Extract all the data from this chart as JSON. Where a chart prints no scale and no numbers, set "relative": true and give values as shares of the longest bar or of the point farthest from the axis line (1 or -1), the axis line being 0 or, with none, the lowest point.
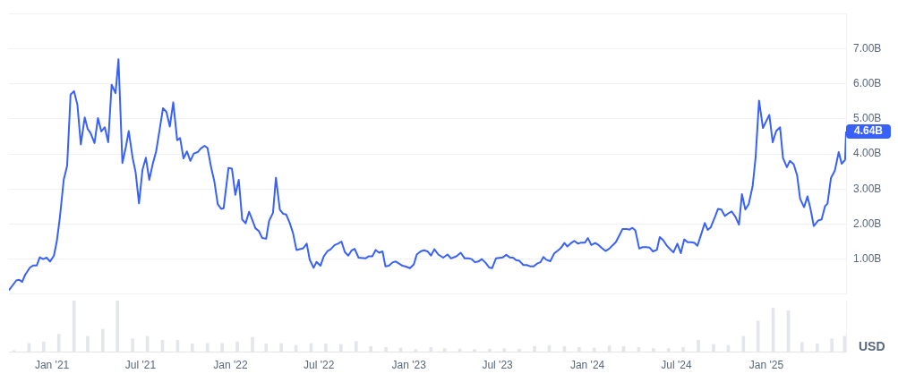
{
  "chart_data": [
    {
      "type": "line",
      "ylabel": "USD",
      "xlim": [
        "2020-10-05",
        "2025-06-13"
      ],
      "ylim": [
        0,
        8
      ],
      "grid": "y",
      "tick_labels": "y",
      "yticks": [
        {
          "value": 0,
          "label": null
        },
        {
          "value": 1,
          "label": "1.00B"
        },
        {
          "value": 2,
          "label": "2.00B"
        },
        {
          "value": 3,
          "label": "3.00B"
        },
        {
          "value": 4,
          "label": "4.00B"
        },
        {
          "value": 5,
          "label": "5.00B"
        },
        {
          "value": 6,
          "label": "6.00B"
        },
        {
          "value": 7,
          "label": "7.00B"
        },
        {
          "value": 8,
          "label": null
        }
      ],
      "annotations": [
        {
          "text": "4.64B",
          "x": "2025-06-13",
          "y": 4.64
        }
      ],
      "series": [
        {
          "color": "#3861fb",
          "x": [
            "2020-10-05",
            "2020-10-20",
            "2020-10-26",
            "2020-11-01",
            "2020-11-07",
            "2020-11-17",
            "2020-11-24",
            "2020-12-01",
            "2020-12-07",
            "2020-12-14",
            "2020-12-21",
            "2020-12-28",
            "2021-01-05",
            "2021-01-11",
            "2021-01-17",
            "2021-01-25",
            "2021-02-01",
            "2021-02-08",
            "2021-02-15",
            "2021-02-22",
            "2021-03-01",
            "2021-03-09",
            "2021-03-15",
            "2021-03-21",
            "2021-03-29",
            "2021-04-05",
            "2021-04-12",
            "2021-04-19",
            "2021-04-26",
            "2021-05-03",
            "2021-05-11",
            "2021-05-17",
            "2021-05-25",
            "2021-06-01",
            "2021-06-07",
            "2021-06-15",
            "2021-06-21",
            "2021-06-28",
            "2021-07-05",
            "2021-07-12",
            "2021-07-19",
            "2021-07-26",
            "2021-08-02",
            "2021-08-09",
            "2021-08-16",
            "2021-08-23",
            "2021-08-30",
            "2021-09-06",
            "2021-09-14",
            "2021-09-20",
            "2021-09-27",
            "2021-10-04",
            "2021-10-11",
            "2021-10-18",
            "2021-10-26",
            "2021-11-01",
            "2021-11-09",
            "2021-11-15",
            "2021-11-23",
            "2021-11-29",
            "2021-12-06",
            "2021-12-13",
            "2021-12-18",
            "2021-12-28",
            "2022-01-04",
            "2022-01-11",
            "2022-01-18",
            "2022-01-25",
            "2022-02-01",
            "2022-02-08",
            "2022-02-14",
            "2022-02-21",
            "2022-02-28",
            "2022-03-07",
            "2022-03-15",
            "2022-03-21",
            "2022-03-29",
            "2022-04-04",
            "2022-04-12",
            "2022-04-19",
            "2022-04-25",
            "2022-05-02",
            "2022-05-09",
            "2022-05-16",
            "2022-05-30",
            "2022-06-06",
            "2022-06-12",
            "2022-06-20",
            "2022-06-26",
            "2022-07-04",
            "2022-07-11",
            "2022-07-18",
            "2022-07-25",
            "2022-08-02",
            "2022-08-09",
            "2022-08-16",
            "2022-08-23",
            "2022-08-30",
            "2022-09-06",
            "2022-09-12",
            "2022-09-20",
            "2022-10-04",
            "2022-10-11",
            "2022-10-18",
            "2022-10-25",
            "2022-11-01",
            "2022-11-08",
            "2022-11-14",
            "2022-11-21",
            "2022-11-29",
            "2022-12-05",
            "2022-12-19",
            "2022-12-27",
            "2023-01-03",
            "2023-01-11",
            "2023-01-17",
            "2023-01-25",
            "2023-02-01",
            "2023-02-08",
            "2023-02-15",
            "2023-02-22",
            "2023-03-02",
            "2023-03-12",
            "2023-03-21",
            "2023-03-28",
            "2023-04-08",
            "2023-04-17",
            "2023-04-25",
            "2023-05-03",
            "2023-05-09",
            "2023-05-16",
            "2023-05-23",
            "2023-05-30",
            "2023-06-07",
            "2023-06-14",
            "2023-06-20",
            "2023-06-28",
            "2023-07-12",
            "2023-07-19",
            "2023-07-26",
            "2023-08-02",
            "2023-08-08",
            "2023-08-15",
            "2023-08-23",
            "2023-08-30",
            "2023-09-07",
            "2023-09-13",
            "2023-09-20",
            "2023-09-27",
            "2023-10-03",
            "2023-10-09",
            "2023-10-17",
            "2023-10-25",
            "2023-11-03",
            "2023-11-08",
            "2023-11-15",
            "2023-11-21",
            "2023-11-29",
            "2023-12-05",
            "2023-12-13",
            "2023-12-19",
            "2023-12-27",
            "2024-01-02",
            "2024-01-09",
            "2024-01-17",
            "2024-01-24",
            "2024-01-30",
            "2024-02-07",
            "2024-02-15",
            "2024-02-22",
            "2024-02-28",
            "2024-03-05",
            "2024-03-13",
            "2024-03-21",
            "2024-03-27",
            "2024-04-02",
            "2024-04-08",
            "2024-04-16",
            "2024-04-23",
            "2024-05-01",
            "2024-05-07",
            "2024-05-14",
            "2024-05-22",
            "2024-05-28",
            "2024-06-04",
            "2024-06-11",
            "2024-06-19",
            "2024-06-25",
            "2024-07-03",
            "2024-07-10",
            "2024-07-17",
            "2024-07-24",
            "2024-07-31",
            "2024-08-07",
            "2024-08-13",
            "2024-08-21",
            "2024-08-28",
            "2024-09-03",
            "2024-09-09",
            "2024-09-17",
            "2024-09-24",
            "2024-10-01",
            "2024-10-08",
            "2024-10-16",
            "2024-10-22",
            "2024-10-30",
            "2024-11-06",
            "2024-11-12",
            "2024-11-19",
            "2024-11-26",
            "2024-12-04",
            "2024-12-10",
            "2024-12-17",
            "2024-12-25",
            "2025-01-01",
            "2025-01-07",
            "2025-01-14",
            "2025-01-21",
            "2025-01-29",
            "2025-02-04",
            "2025-02-12",
            "2025-02-18",
            "2025-02-26",
            "2025-03-05",
            "2025-03-11",
            "2025-03-19",
            "2025-03-26",
            "2025-04-01",
            "2025-04-08",
            "2025-04-17",
            "2025-04-24",
            "2025-05-01",
            "2025-05-06",
            "2025-05-13",
            "2025-05-21",
            "2025-05-29",
            "2025-06-04",
            "2025-06-11",
            "2025-06-13"
          ],
          "values": [
            0.11,
            0.39,
            0.41,
            0.35,
            0.55,
            0.76,
            0.82,
            0.82,
            1.05,
            1.0,
            1.04,
            0.93,
            1.1,
            1.52,
            2.17,
            3.26,
            3.66,
            5.69,
            5.79,
            5.4,
            4.27,
            5.04,
            4.71,
            4.59,
            4.31,
            5.02,
            4.64,
            4.76,
            4.33,
            5.97,
            5.73,
            6.7,
            3.74,
            4.19,
            4.65,
            3.88,
            3.48,
            2.59,
            3.54,
            3.89,
            3.26,
            3.71,
            4.07,
            4.68,
            5.3,
            5.2,
            4.78,
            5.47,
            4.39,
            4.45,
            3.87,
            4.07,
            3.8,
            4.01,
            4.05,
            4.15,
            4.23,
            4.17,
            3.58,
            3.22,
            2.57,
            2.43,
            2.45,
            3.6,
            3.58,
            2.83,
            3.26,
            2.13,
            2.02,
            2.35,
            2.14,
            1.88,
            1.8,
            1.6,
            1.58,
            2.09,
            2.32,
            3.32,
            2.41,
            2.29,
            2.27,
            2.04,
            1.74,
            1.26,
            1.31,
            1.44,
            0.99,
            0.75,
            0.92,
            0.81,
            1.08,
            1.22,
            1.28,
            1.4,
            1.44,
            1.5,
            1.2,
            1.1,
            1.25,
            1.29,
            1.04,
            1.02,
            1.08,
            1.08,
            1.26,
            1.18,
            1.22,
            0.79,
            0.81,
            0.91,
            0.93,
            0.81,
            0.78,
            0.74,
            0.85,
            1.13,
            1.22,
            1.25,
            1.22,
            1.1,
            1.28,
            1.13,
            1.04,
            1.13,
            1.02,
            1.08,
            1.18,
            1.02,
            1.02,
            1.0,
            0.91,
            0.93,
            1.0,
            0.89,
            0.76,
            0.74,
            1.02,
            1.05,
            1.12,
            1.05,
            1.04,
            0.97,
            0.95,
            0.83,
            0.83,
            0.79,
            0.79,
            0.87,
            0.91,
            1.06,
            0.98,
            0.94,
            1.16,
            1.26,
            1.32,
            1.46,
            1.36,
            1.46,
            1.52,
            1.44,
            1.47,
            1.47,
            1.6,
            1.4,
            1.46,
            1.4,
            1.32,
            1.23,
            1.3,
            1.4,
            1.48,
            1.64,
            1.86,
            1.86,
            1.84,
            1.89,
            1.82,
            1.3,
            1.34,
            1.34,
            1.33,
            1.22,
            1.26,
            1.63,
            1.54,
            1.39,
            1.27,
            1.19,
            1.44,
            1.17,
            1.56,
            1.48,
            1.48,
            1.46,
            1.38,
            1.72,
            2.03,
            1.83,
            1.9,
            2.17,
            2.43,
            2.41,
            2.23,
            2.31,
            2.36,
            2.2,
            1.98,
            2.85,
            2.41,
            2.57,
            3.09,
            3.9,
            5.52,
            4.74,
            4.94,
            5.11,
            4.33,
            4.65,
            4.76,
            3.88,
            3.62,
            3.8,
            3.7,
            3.38,
            2.72,
            2.48,
            2.79,
            2.45,
            1.94,
            2.1,
            2.13,
            2.51,
            2.58,
            3.31,
            3.52,
            4.05,
            3.72,
            3.83,
            4.64
          ]
        }
      ]
    },
    {
      "type": "bar",
      "relative": true,
      "color": "#e3e6ec",
      "tick_labels": "x",
      "xlim": [
        "2020-10-05",
        "2025-06-13"
      ],
      "xticks": [
        {
          "value": "2021-01-01",
          "label": "Jan '21"
        },
        {
          "value": "2021-07-01",
          "label": "Jul '21"
        },
        {
          "value": "2022-01-01",
          "label": "Jan '22"
        },
        {
          "value": "2022-07-01",
          "label": "Jul '22"
        },
        {
          "value": "2023-01-01",
          "label": "Jan '23"
        },
        {
          "value": "2023-07-01",
          "label": "Jul '23"
        },
        {
          "value": "2024-01-01",
          "label": "Jan '24"
        },
        {
          "value": "2024-07-01",
          "label": "Jul '24"
        },
        {
          "value": "2025-01-01",
          "label": "Jan '25"
        }
      ],
      "x": [
        "2020-10-15",
        "2020-11-15",
        "2020-12-15",
        "2021-01-15",
        "2021-02-15",
        "2021-03-15",
        "2021-04-15",
        "2021-05-15",
        "2021-06-15",
        "2021-07-15",
        "2021-08-15",
        "2021-09-15",
        "2021-10-15",
        "2021-11-15",
        "2021-12-15",
        "2022-01-15",
        "2022-02-15",
        "2022-03-15",
        "2022-04-15",
        "2022-05-15",
        "2022-06-15",
        "2022-07-15",
        "2022-08-15",
        "2022-09-15",
        "2022-10-15",
        "2022-11-15",
        "2022-12-15",
        "2023-01-15",
        "2023-02-15",
        "2023-03-15",
        "2023-04-15",
        "2023-05-15",
        "2023-06-15",
        "2023-07-15",
        "2023-08-15",
        "2023-09-15",
        "2023-10-15",
        "2023-11-15",
        "2023-12-15",
        "2024-01-15",
        "2024-02-15",
        "2024-03-15",
        "2024-04-15",
        "2024-05-15",
        "2024-06-15",
        "2024-07-15",
        "2024-08-15",
        "2024-09-15",
        "2024-10-15",
        "2024-11-15",
        "2024-12-15",
        "2025-01-15",
        "2025-02-15",
        "2025-03-15",
        "2025-04-15",
        "2025-05-15",
        "2025-06-10"
      ],
      "values": [
        0.02,
        0.16,
        0.19,
        0.34,
        1.0,
        0.3,
        0.44,
        1.0,
        0.25,
        0.3,
        0.22,
        0.22,
        0.15,
        0.16,
        0.16,
        0.19,
        0.28,
        0.15,
        0.16,
        0.12,
        0.16,
        0.15,
        0.14,
        0.2,
        0.1,
        0.08,
        0.07,
        0.04,
        0.08,
        0.06,
        0.05,
        0.04,
        0.05,
        0.06,
        0.05,
        0.1,
        0.12,
        0.1,
        0.08,
        0.07,
        0.11,
        0.1,
        0.08,
        0.06,
        0.06,
        0.08,
        0.22,
        0.14,
        0.12,
        0.3,
        0.6,
        0.85,
        0.8,
        0.18,
        0.15,
        0.25,
        0.3
      ]
    }
  ]
}
